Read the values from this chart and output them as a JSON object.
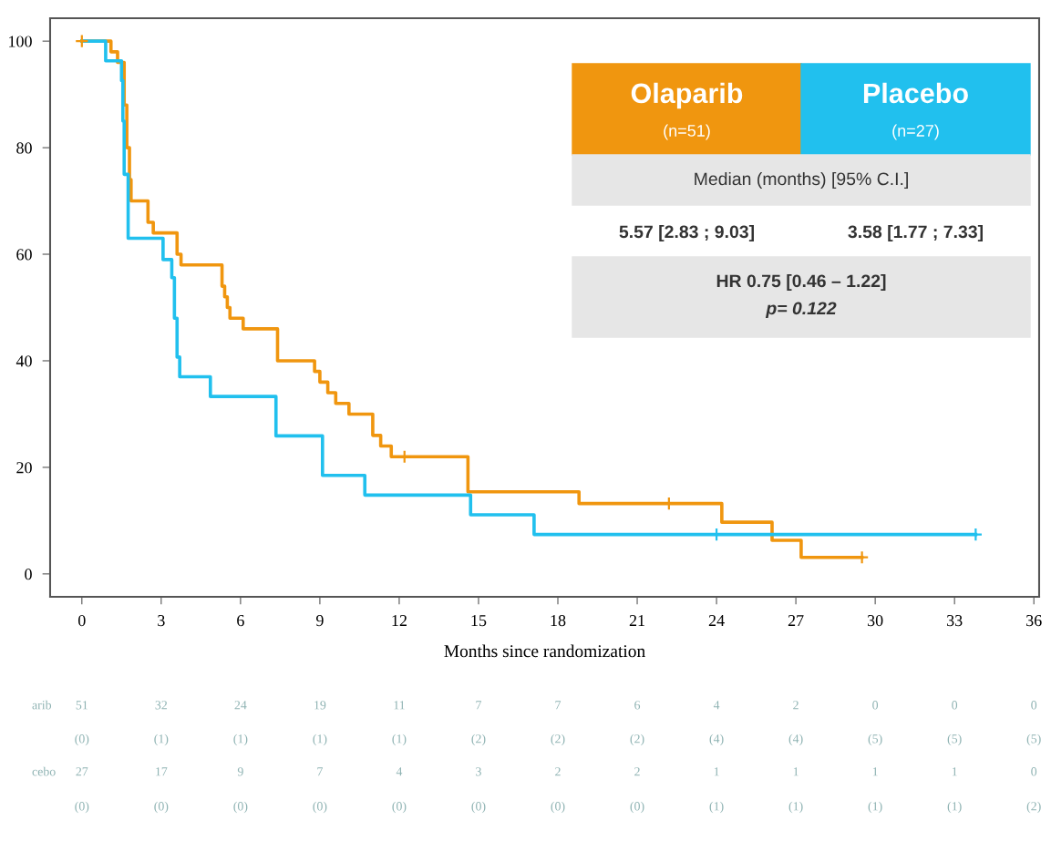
{
  "chart_data": {
    "type": "step",
    "xlabel": "Months since randomization",
    "xlim": [
      -1.2,
      36.2
    ],
    "xticks": [
      0,
      3,
      6,
      9,
      12,
      15,
      18,
      21,
      24,
      27,
      30,
      33,
      36
    ],
    "ylim": [
      -4.3,
      104.3
    ],
    "yticks": [
      0,
      20,
      40,
      60,
      80,
      100
    ],
    "grid": false,
    "legend": "top right",
    "marker": "none",
    "line_style": "solid",
    "series": [
      {
        "name": "Olaparib",
        "color": "#f0960f",
        "x": [
          0,
          1.1,
          1.35,
          1.6,
          1.7,
          1.8,
          1.86,
          2.5,
          2.7,
          3.6,
          3.75,
          5.3,
          5.4,
          5.5,
          5.6,
          6.1,
          7.4,
          8.8,
          9.0,
          9.3,
          9.6,
          10.1,
          11.0,
          11.3,
          11.7,
          14.6,
          18.8,
          24.2,
          26.1,
          27.2,
          29.5
        ],
        "values": [
          100,
          98,
          96,
          88,
          80,
          74,
          70,
          66,
          64,
          60,
          58,
          54,
          52,
          50,
          48,
          46,
          40,
          38,
          36,
          34,
          32,
          30,
          26,
          24,
          22,
          15.4,
          13.2,
          9.7,
          6.3,
          3.1,
          3.1
        ]
      },
      {
        "name": "Placebo",
        "color": "#21c0ee",
        "x": [
          0,
          0.9,
          1.5,
          1.55,
          1.6,
          1.75,
          3.07,
          3.4,
          3.5,
          3.6,
          3.7,
          4.86,
          7.34,
          9.1,
          10.7,
          14.7,
          17.1,
          33.8
        ],
        "values": [
          100,
          96.3,
          92.6,
          85,
          75,
          63,
          59,
          55.6,
          48,
          40.7,
          37,
          33.3,
          25.9,
          18.5,
          14.8,
          11.1,
          7.4,
          7.4
        ]
      },
      {
        "type": "scatter",
        "marker": "cross",
        "color": "#f0960f",
        "x": [
          0,
          12.2,
          22.2,
          29.5
        ],
        "values": [
          100,
          22,
          13.2,
          3.1
        ]
      },
      {
        "type": "scatter",
        "marker": "cross",
        "color": "#21c0ee",
        "x": [
          24.0,
          33.8
        ],
        "values": [
          7.4,
          7.4
        ]
      }
    ],
    "annotations": [
      "(n=51)",
      "(n=27)",
      "Median (months) [95% C.I.]",
      "5.57 [2.83 ; 9.03]",
      "3.58 [1.77 ; 7.33]",
      "HR 0.75 [0.46 – 1.22]",
      "p= 0.122",
      "arib",
      "51 32 24 19 11 7 7 6 4 2 0 0 0",
      "(0) (1) (1) (1) (1) (2) (2) (2) (4) (4) (5) (5) (5)",
      "cebo",
      "27 17 9 7 4 3 2 2 1 1 1 1 0",
      "(0) (0) (0) (0) (0) (0) (0) (0) (1) (1) (1) (1) (2)"
    ]
  }
}
